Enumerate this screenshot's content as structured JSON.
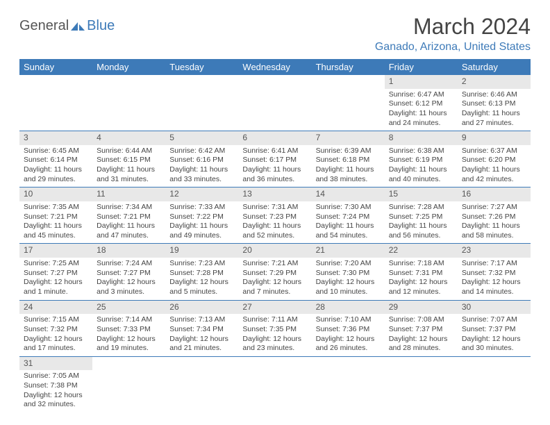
{
  "logo": {
    "text_general": "General",
    "text_blue": "Blue"
  },
  "header": {
    "month_title": "March 2024",
    "location": "Ganado, Arizona, United States"
  },
  "colors": {
    "header_bg": "#3d7ab8",
    "header_text": "#ffffff",
    "daynum_bg": "#e8e8e8",
    "border": "#3d7ab8",
    "text": "#444444"
  },
  "weekdays": [
    "Sunday",
    "Monday",
    "Tuesday",
    "Wednesday",
    "Thursday",
    "Friday",
    "Saturday"
  ],
  "weeks": [
    [
      null,
      null,
      null,
      null,
      null,
      {
        "num": "1",
        "sunrise": "Sunrise: 6:47 AM",
        "sunset": "Sunset: 6:12 PM",
        "daylight": "Daylight: 11 hours and 24 minutes."
      },
      {
        "num": "2",
        "sunrise": "Sunrise: 6:46 AM",
        "sunset": "Sunset: 6:13 PM",
        "daylight": "Daylight: 11 hours and 27 minutes."
      }
    ],
    [
      {
        "num": "3",
        "sunrise": "Sunrise: 6:45 AM",
        "sunset": "Sunset: 6:14 PM",
        "daylight": "Daylight: 11 hours and 29 minutes."
      },
      {
        "num": "4",
        "sunrise": "Sunrise: 6:44 AM",
        "sunset": "Sunset: 6:15 PM",
        "daylight": "Daylight: 11 hours and 31 minutes."
      },
      {
        "num": "5",
        "sunrise": "Sunrise: 6:42 AM",
        "sunset": "Sunset: 6:16 PM",
        "daylight": "Daylight: 11 hours and 33 minutes."
      },
      {
        "num": "6",
        "sunrise": "Sunrise: 6:41 AM",
        "sunset": "Sunset: 6:17 PM",
        "daylight": "Daylight: 11 hours and 36 minutes."
      },
      {
        "num": "7",
        "sunrise": "Sunrise: 6:39 AM",
        "sunset": "Sunset: 6:18 PM",
        "daylight": "Daylight: 11 hours and 38 minutes."
      },
      {
        "num": "8",
        "sunrise": "Sunrise: 6:38 AM",
        "sunset": "Sunset: 6:19 PM",
        "daylight": "Daylight: 11 hours and 40 minutes."
      },
      {
        "num": "9",
        "sunrise": "Sunrise: 6:37 AM",
        "sunset": "Sunset: 6:20 PM",
        "daylight": "Daylight: 11 hours and 42 minutes."
      }
    ],
    [
      {
        "num": "10",
        "sunrise": "Sunrise: 7:35 AM",
        "sunset": "Sunset: 7:21 PM",
        "daylight": "Daylight: 11 hours and 45 minutes."
      },
      {
        "num": "11",
        "sunrise": "Sunrise: 7:34 AM",
        "sunset": "Sunset: 7:21 PM",
        "daylight": "Daylight: 11 hours and 47 minutes."
      },
      {
        "num": "12",
        "sunrise": "Sunrise: 7:33 AM",
        "sunset": "Sunset: 7:22 PM",
        "daylight": "Daylight: 11 hours and 49 minutes."
      },
      {
        "num": "13",
        "sunrise": "Sunrise: 7:31 AM",
        "sunset": "Sunset: 7:23 PM",
        "daylight": "Daylight: 11 hours and 52 minutes."
      },
      {
        "num": "14",
        "sunrise": "Sunrise: 7:30 AM",
        "sunset": "Sunset: 7:24 PM",
        "daylight": "Daylight: 11 hours and 54 minutes."
      },
      {
        "num": "15",
        "sunrise": "Sunrise: 7:28 AM",
        "sunset": "Sunset: 7:25 PM",
        "daylight": "Daylight: 11 hours and 56 minutes."
      },
      {
        "num": "16",
        "sunrise": "Sunrise: 7:27 AM",
        "sunset": "Sunset: 7:26 PM",
        "daylight": "Daylight: 11 hours and 58 minutes."
      }
    ],
    [
      {
        "num": "17",
        "sunrise": "Sunrise: 7:25 AM",
        "sunset": "Sunset: 7:27 PM",
        "daylight": "Daylight: 12 hours and 1 minute."
      },
      {
        "num": "18",
        "sunrise": "Sunrise: 7:24 AM",
        "sunset": "Sunset: 7:27 PM",
        "daylight": "Daylight: 12 hours and 3 minutes."
      },
      {
        "num": "19",
        "sunrise": "Sunrise: 7:23 AM",
        "sunset": "Sunset: 7:28 PM",
        "daylight": "Daylight: 12 hours and 5 minutes."
      },
      {
        "num": "20",
        "sunrise": "Sunrise: 7:21 AM",
        "sunset": "Sunset: 7:29 PM",
        "daylight": "Daylight: 12 hours and 7 minutes."
      },
      {
        "num": "21",
        "sunrise": "Sunrise: 7:20 AM",
        "sunset": "Sunset: 7:30 PM",
        "daylight": "Daylight: 12 hours and 10 minutes."
      },
      {
        "num": "22",
        "sunrise": "Sunrise: 7:18 AM",
        "sunset": "Sunset: 7:31 PM",
        "daylight": "Daylight: 12 hours and 12 minutes."
      },
      {
        "num": "23",
        "sunrise": "Sunrise: 7:17 AM",
        "sunset": "Sunset: 7:32 PM",
        "daylight": "Daylight: 12 hours and 14 minutes."
      }
    ],
    [
      {
        "num": "24",
        "sunrise": "Sunrise: 7:15 AM",
        "sunset": "Sunset: 7:32 PM",
        "daylight": "Daylight: 12 hours and 17 minutes."
      },
      {
        "num": "25",
        "sunrise": "Sunrise: 7:14 AM",
        "sunset": "Sunset: 7:33 PM",
        "daylight": "Daylight: 12 hours and 19 minutes."
      },
      {
        "num": "26",
        "sunrise": "Sunrise: 7:13 AM",
        "sunset": "Sunset: 7:34 PM",
        "daylight": "Daylight: 12 hours and 21 minutes."
      },
      {
        "num": "27",
        "sunrise": "Sunrise: 7:11 AM",
        "sunset": "Sunset: 7:35 PM",
        "daylight": "Daylight: 12 hours and 23 minutes."
      },
      {
        "num": "28",
        "sunrise": "Sunrise: 7:10 AM",
        "sunset": "Sunset: 7:36 PM",
        "daylight": "Daylight: 12 hours and 26 minutes."
      },
      {
        "num": "29",
        "sunrise": "Sunrise: 7:08 AM",
        "sunset": "Sunset: 7:37 PM",
        "daylight": "Daylight: 12 hours and 28 minutes."
      },
      {
        "num": "30",
        "sunrise": "Sunrise: 7:07 AM",
        "sunset": "Sunset: 7:37 PM",
        "daylight": "Daylight: 12 hours and 30 minutes."
      }
    ],
    [
      {
        "num": "31",
        "sunrise": "Sunrise: 7:05 AM",
        "sunset": "Sunset: 7:38 PM",
        "daylight": "Daylight: 12 hours and 32 minutes."
      },
      null,
      null,
      null,
      null,
      null,
      null
    ]
  ]
}
